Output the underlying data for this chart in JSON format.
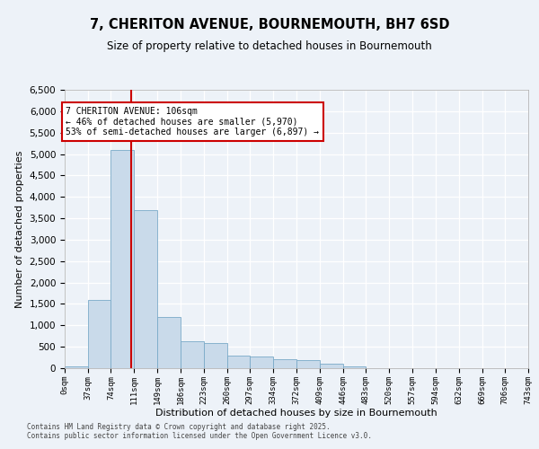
{
  "title": "7, CHERITON AVENUE, BOURNEMOUTH, BH7 6SD",
  "subtitle": "Size of property relative to detached houses in Bournemouth",
  "xlabel": "Distribution of detached houses by size in Bournemouth",
  "ylabel": "Number of detached properties",
  "bar_color": "#c9daea",
  "bar_edge_color": "#7aaac8",
  "bg_color": "#edf2f8",
  "grid_color": "#ffffff",
  "vline_x": 106,
  "vline_color": "#cc0000",
  "bins": [
    0,
    37,
    74,
    111,
    149,
    186,
    223,
    260,
    297,
    334,
    372,
    409,
    446,
    483,
    520,
    557,
    594,
    632,
    669,
    706,
    743
  ],
  "bin_labels": [
    "0sqm",
    "37sqm",
    "74sqm",
    "111sqm",
    "149sqm",
    "186sqm",
    "223sqm",
    "260sqm",
    "297sqm",
    "334sqm",
    "372sqm",
    "409sqm",
    "446sqm",
    "483sqm",
    "520sqm",
    "557sqm",
    "594sqm",
    "632sqm",
    "669sqm",
    "706sqm",
    "743sqm"
  ],
  "bar_heights": [
    50,
    1600,
    5100,
    3700,
    1200,
    620,
    580,
    300,
    280,
    200,
    180,
    100,
    50,
    0,
    0,
    0,
    0,
    0,
    0,
    0
  ],
  "ylim": [
    0,
    6500
  ],
  "yticks": [
    0,
    500,
    1000,
    1500,
    2000,
    2500,
    3000,
    3500,
    4000,
    4500,
    5000,
    5500,
    6000,
    6500
  ],
  "annotation_line1": "7 CHERITON AVENUE: 106sqm",
  "annotation_line2": "← 46% of detached houses are smaller (5,970)",
  "annotation_line3": "53% of semi-detached houses are larger (6,897) →",
  "annotation_box_color": "#cc0000",
  "footer1": "Contains HM Land Registry data © Crown copyright and database right 2025.",
  "footer2": "Contains public sector information licensed under the Open Government Licence v3.0."
}
